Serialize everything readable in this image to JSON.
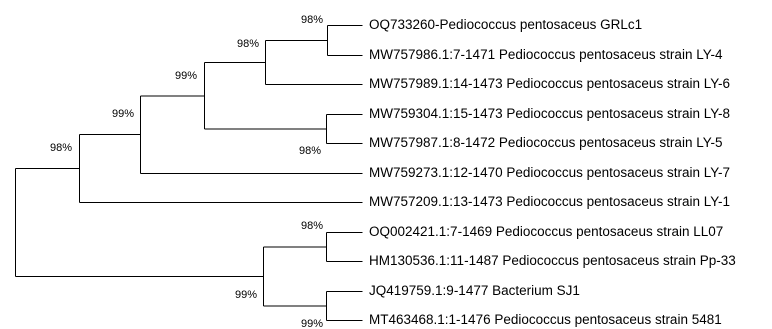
{
  "tree": {
    "leaves": [
      {
        "id": "l1",
        "label": "OQ733260-Pediococcus pentosaceus GRLc1"
      },
      {
        "id": "l2",
        "label": "MW757986.1:7-1471 Pediococcus pentosaceus strain LY-4"
      },
      {
        "id": "l3",
        "label": "MW757989.1:14-1473 Pediococcus pentosaceus strain LY-6"
      },
      {
        "id": "l4",
        "label": "MW759304.1:15-1473 Pediococcus pentosaceus strain LY-8"
      },
      {
        "id": "l5",
        "label": "MW757987.1:8-1472 Pediococcus pentosaceus strain LY-5"
      },
      {
        "id": "l6",
        "label": "MW759273.1:12-1470 Pediococcus pentosaceus strain LY-7"
      },
      {
        "id": "l7",
        "label": "MW757209.1:13-1473 Pediococcus pentosaceus strain LY-1"
      },
      {
        "id": "l8",
        "label": "OQ002421.1:7-1469 Pediococcus pentosaceus strain LL07"
      },
      {
        "id": "l9",
        "label": "HM130536.1:11-1487 Pediococcus pentosaceus strain Pp-33"
      },
      {
        "id": "l10",
        "label": "JQ419759.1:9-1477 Bacterium SJ1"
      },
      {
        "id": "l11",
        "label": "MT463468.1:1-1476 Pediococcus pentosaceus strain 5481"
      }
    ],
    "support_values": [
      {
        "node": "l1_l2",
        "value": "98%"
      },
      {
        "node": "l1_l3",
        "value": "98%"
      },
      {
        "node": "l4_l5",
        "value": "98%"
      },
      {
        "node": "l1_l5",
        "value": "99%"
      },
      {
        "node": "l1_l6",
        "value": "99%"
      },
      {
        "node": "l1_l7",
        "value": "98%"
      },
      {
        "node": "l8_l9",
        "value": "98%"
      },
      {
        "node": "l10_l11",
        "value": "99%"
      },
      {
        "node": "l8_l11",
        "value": "99%"
      }
    ]
  }
}
